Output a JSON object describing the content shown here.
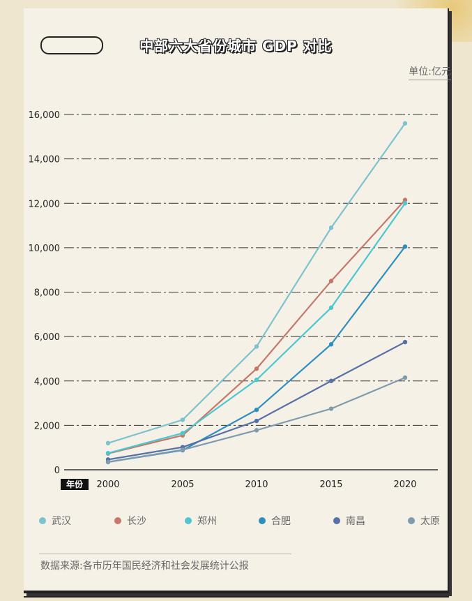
{
  "chart_data": {
    "type": "line",
    "title": "中部六大省份城市 GDP 对比",
    "unit": "单位:亿元",
    "x_axis_label": "年份",
    "x": [
      "2000",
      "2005",
      "2010",
      "2015",
      "2020"
    ],
    "ylim": [
      0,
      16000
    ],
    "y_ticks": [
      "0",
      "2,000",
      "4,000",
      "6,000",
      "8,000",
      "10,000",
      "12,000",
      "14,000",
      "16,000"
    ],
    "series": [
      {
        "name": "武汉",
        "color": "#7cc3cf",
        "values": [
          1200,
          2250,
          5550,
          10900,
          15600
        ]
      },
      {
        "name": "长沙",
        "color": "#c5786a",
        "values": [
          730,
          1550,
          4550,
          8500,
          12150
        ]
      },
      {
        "name": "郑州",
        "color": "#4cc6cf",
        "values": [
          750,
          1650,
          4050,
          7300,
          12000
        ]
      },
      {
        "name": "合肥",
        "color": "#2e8fbf",
        "values": [
          350,
          880,
          2700,
          5650,
          10050
        ]
      },
      {
        "name": "南昌",
        "color": "#5670a8",
        "values": [
          460,
          1020,
          2200,
          4000,
          5750
        ]
      },
      {
        "name": "太原",
        "color": "#7e9aad",
        "values": [
          350,
          900,
          1780,
          2750,
          4150
        ]
      }
    ],
    "grid": true,
    "legend_position": "bottom",
    "source": "数据来源:各市历年国民经济和社会发展统计公报"
  }
}
